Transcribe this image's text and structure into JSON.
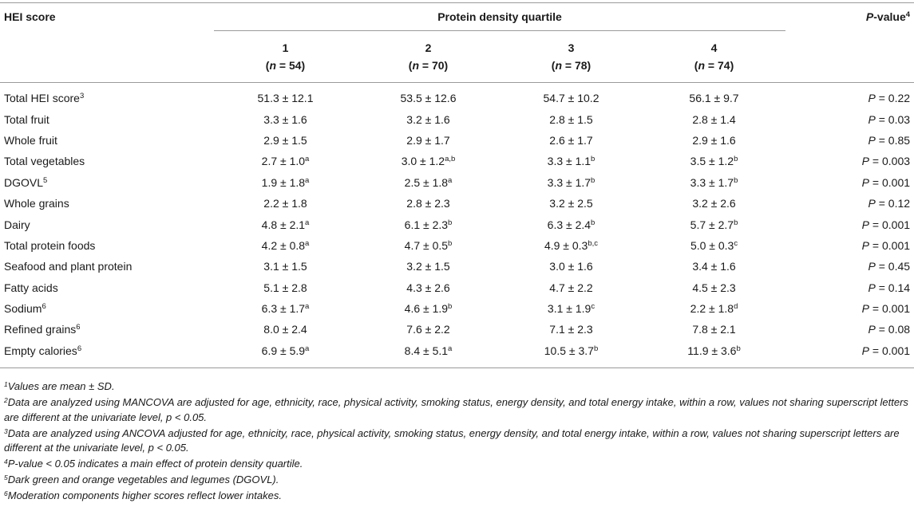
{
  "header": {
    "hei_label": "HEI score",
    "quartile_label": "Protein density quartile",
    "pvalue_italic": "P",
    "pvalue_rest": "-value",
    "pvalue_sup": "4",
    "quartiles": [
      {
        "num": "1",
        "n": "54"
      },
      {
        "num": "2",
        "n": "70"
      },
      {
        "num": "3",
        "n": "78"
      },
      {
        "num": "4",
        "n": "74"
      }
    ],
    "n_prefix": "(",
    "n_italic": "n",
    "n_eq": " = ",
    "n_suffix": ")"
  },
  "rows": [
    {
      "label": "Total HEI score",
      "label_sup": "3",
      "cells": [
        {
          "v": "51.3 ± 12.1",
          "s": ""
        },
        {
          "v": "53.5 ± 12.6",
          "s": ""
        },
        {
          "v": "54.7 ± 10.2",
          "s": ""
        },
        {
          "v": "56.1 ± 9.7",
          "s": ""
        }
      ],
      "p": "0.22"
    },
    {
      "label": "Total fruit",
      "label_sup": "",
      "cells": [
        {
          "v": "3.3 ± 1.6",
          "s": ""
        },
        {
          "v": "3.2 ± 1.6",
          "s": ""
        },
        {
          "v": "2.8 ± 1.5",
          "s": ""
        },
        {
          "v": "2.8 ± 1.4",
          "s": ""
        }
      ],
      "p": "0.03"
    },
    {
      "label": "Whole fruit",
      "label_sup": "",
      "cells": [
        {
          "v": "2.9 ± 1.5",
          "s": ""
        },
        {
          "v": "2.9 ± 1.7",
          "s": ""
        },
        {
          "v": "2.6 ± 1.7",
          "s": ""
        },
        {
          "v": "2.9 ± 1.6",
          "s": ""
        }
      ],
      "p": "0.85"
    },
    {
      "label": "Total vegetables",
      "label_sup": "",
      "cells": [
        {
          "v": "2.7 ± 1.0",
          "s": "a"
        },
        {
          "v": "3.0 ± 1.2",
          "s": "a,b"
        },
        {
          "v": "3.3 ± 1.1",
          "s": "b"
        },
        {
          "v": "3.5 ± 1.2",
          "s": "b"
        }
      ],
      "p": "0.003"
    },
    {
      "label": "DGOVL",
      "label_sup": "5",
      "cells": [
        {
          "v": "1.9 ± 1.8",
          "s": "a"
        },
        {
          "v": "2.5 ± 1.8",
          "s": "a"
        },
        {
          "v": "3.3 ± 1.7",
          "s": "b"
        },
        {
          "v": "3.3 ± 1.7",
          "s": "b"
        }
      ],
      "p": "0.001"
    },
    {
      "label": "Whole grains",
      "label_sup": "",
      "cells": [
        {
          "v": "2.2 ± 1.8",
          "s": ""
        },
        {
          "v": "2.8 ± 2.3",
          "s": ""
        },
        {
          "v": "3.2 ± 2.5",
          "s": ""
        },
        {
          "v": "3.2 ± 2.6",
          "s": ""
        }
      ],
      "p": "0.12"
    },
    {
      "label": "Dairy",
      "label_sup": "",
      "cells": [
        {
          "v": "4.8 ± 2.1",
          "s": "a"
        },
        {
          "v": "6.1 ± 2.3",
          "s": "b"
        },
        {
          "v": "6.3 ± 2.4",
          "s": "b"
        },
        {
          "v": "5.7 ± 2.7",
          "s": "b"
        }
      ],
      "p": "0.001"
    },
    {
      "label": "Total protein foods",
      "label_sup": "",
      "cells": [
        {
          "v": "4.2 ± 0.8",
          "s": "a"
        },
        {
          "v": "4.7 ± 0.5",
          "s": "b"
        },
        {
          "v": "4.9 ± 0.3",
          "s": "b,c"
        },
        {
          "v": "5.0 ± 0.3",
          "s": "c"
        }
      ],
      "p": "0.001"
    },
    {
      "label": "Seafood and plant protein",
      "label_sup": "",
      "cells": [
        {
          "v": "3.1 ± 1.5",
          "s": ""
        },
        {
          "v": "3.2 ± 1.5",
          "s": ""
        },
        {
          "v": "3.0 ± 1.6",
          "s": ""
        },
        {
          "v": "3.4 ± 1.6",
          "s": ""
        }
      ],
      "p": "0.45"
    },
    {
      "label": "Fatty acids",
      "label_sup": "",
      "cells": [
        {
          "v": "5.1 ± 2.8",
          "s": ""
        },
        {
          "v": "4.3 ± 2.6",
          "s": ""
        },
        {
          "v": "4.7 ± 2.2",
          "s": ""
        },
        {
          "v": "4.5 ± 2.3",
          "s": ""
        }
      ],
      "p": "0.14"
    },
    {
      "label": "Sodium",
      "label_sup": "6",
      "cells": [
        {
          "v": "6.3 ± 1.7",
          "s": "a"
        },
        {
          "v": "4.6 ± 1.9",
          "s": "b"
        },
        {
          "v": "3.1 ± 1.9",
          "s": "c"
        },
        {
          "v": "2.2 ± 1.8",
          "s": "d"
        }
      ],
      "p": "0.001"
    },
    {
      "label": "Refined grains",
      "label_sup": "6",
      "cells": [
        {
          "v": "8.0 ± 2.4",
          "s": ""
        },
        {
          "v": "7.6 ± 2.2",
          "s": ""
        },
        {
          "v": "7.1 ± 2.3",
          "s": ""
        },
        {
          "v": "7.8 ± 2.1",
          "s": ""
        }
      ],
      "p": "0.08"
    },
    {
      "label": "Empty calories",
      "label_sup": "6",
      "cells": [
        {
          "v": "6.9 ± 5.9",
          "s": "a"
        },
        {
          "v": "8.4 ± 5.1",
          "s": "a"
        },
        {
          "v": "10.5 ± 3.7",
          "s": "b"
        },
        {
          "v": "11.9 ± 3.6",
          "s": "b"
        }
      ],
      "p": "0.001"
    }
  ],
  "p_prefix_italic": "P",
  "p_eq": " = ",
  "footnotes": [
    {
      "sup": "1",
      "text": "Values are mean ± SD."
    },
    {
      "sup": "2",
      "text": "Data are analyzed using MANCOVA are adjusted for age, ethnicity, race, physical activity, smoking status, energy density, and total energy intake, within a row, values not sharing superscript letters are different at the univariate level, p < 0.05."
    },
    {
      "sup": "3",
      "text": "Data are analyzed using ANCOVA adjusted for age, ethnicity, race, physical activity, smoking status, energy density, and total energy intake, within a row, values not sharing superscript letters are different at the univariate level, p < 0.05."
    },
    {
      "sup": "4",
      "text": "P-value < 0.05 indicates a main effect of protein density quartile."
    },
    {
      "sup": "5",
      "text": "Dark green and orange vegetables and legumes (DGOVL)."
    },
    {
      "sup": "6",
      "text": "Moderation components higher scores reflect lower intakes."
    }
  ]
}
